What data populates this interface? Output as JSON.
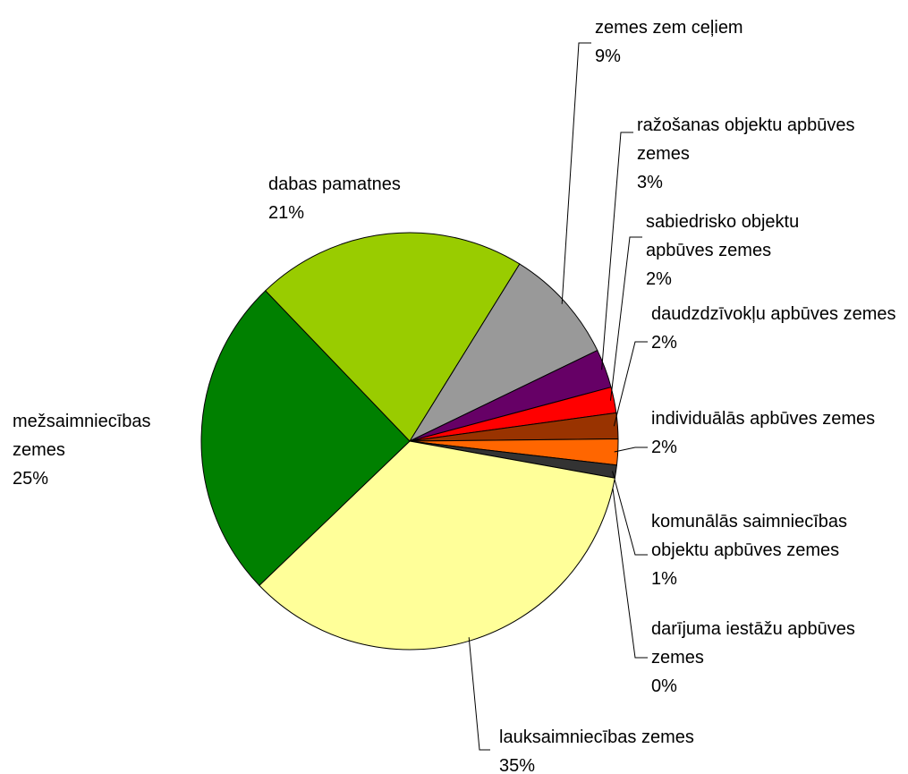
{
  "chart_data": {
    "type": "pie",
    "categories": [
      "zemes zem ceļiem",
      "ražošanas objektu apbūves zemes",
      "sabiedrisko objektu apbūves zemes",
      "daudzdzīvokļu apbūves zemes",
      "individuālās apbūves zemes",
      "komunālās saimniecības objektu apbūves zemes",
      "darījuma iestāžu apbūves zemes",
      "lauksaimniecības zemes",
      "mežsaimniecības zemes",
      "dabas pamatnes"
    ],
    "values": [
      9,
      3,
      2,
      2,
      2,
      1,
      0,
      35,
      25,
      21
    ],
    "value_labels": [
      "9%",
      "3%",
      "2%",
      "2%",
      "2%",
      "1%",
      "0%",
      "35%",
      "25%",
      "21%"
    ],
    "colors": [
      "#999999",
      "#660066",
      "#ff0000",
      "#993300",
      "#ff6600",
      "#333333",
      "#cccccc",
      "#ffff99",
      "#008000",
      "#99cc00"
    ]
  }
}
